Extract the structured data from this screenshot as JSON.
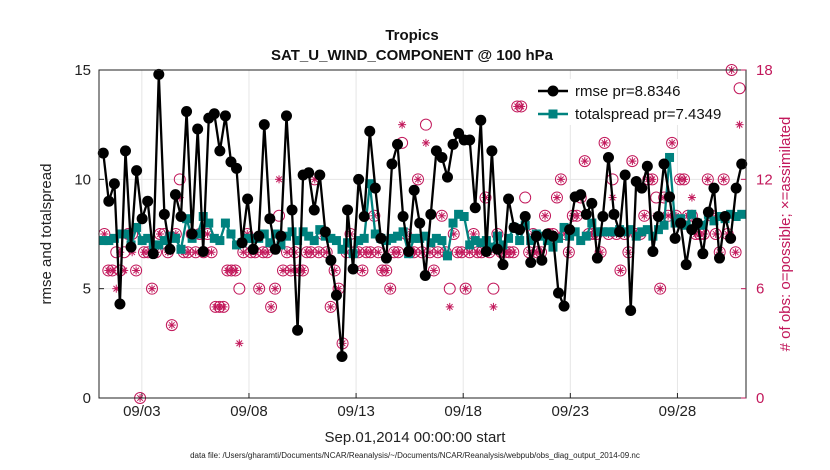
{
  "chart_data": {
    "type": "line",
    "title": "Tropics",
    "subtitle": "SAT_U_WIND_COMPONENT @ 100 hPa",
    "xlabel": "Sep.01,2014 00:00:00 start",
    "ylabel": "rmse and totalspread",
    "ylabel_right": "# of obs: o=possible; ×=assimilated",
    "ylim": [
      0,
      15
    ],
    "ylim_right": [
      0,
      18
    ],
    "xlim_days": [
      0,
      30.2
    ],
    "yticks": [
      "0",
      "5",
      "10",
      "15"
    ],
    "yticks_right": [
      "0",
      "6",
      "12",
      "18"
    ],
    "xticks": [
      {
        "day": 2.0,
        "label": "09/03"
      },
      {
        "day": 7.0,
        "label": "09/08"
      },
      {
        "day": 12.0,
        "label": "09/13"
      },
      {
        "day": 17.0,
        "label": "09/18"
      },
      {
        "day": 22.0,
        "label": "09/23"
      },
      {
        "day": 27.0,
        "label": "09/28"
      }
    ],
    "grid": true,
    "legend_position": "top-right",
    "footnote": "data file: /Users/gharamti/Documents/NCAR/Reanalysis/~/Documents/NCAR/Reanalysis/webpub/obs_diag_output_2014-09.nc",
    "colors": {
      "rmse": "#000000",
      "spread": "#00827f",
      "obs": "#c2185b"
    },
    "series": [
      {
        "name": "rmse pr=8.8346",
        "values": [
          11.2,
          9.0,
          9.8,
          4.3,
          11.3,
          6.9,
          10.4,
          8.2,
          9.0,
          6.6,
          14.8,
          8.4,
          6.8,
          9.3,
          8.3,
          13.1,
          7.5,
          12.3,
          6.7,
          12.8,
          13.0,
          11.3,
          12.9,
          10.8,
          10.5,
          7.1,
          9.1,
          6.8,
          7.4,
          12.5,
          8.2,
          6.8,
          7.4,
          12.9,
          8.6,
          3.1,
          10.2,
          10.3,
          8.6,
          10.2,
          7.6,
          6.3,
          4.7,
          1.9,
          8.6,
          5.9,
          10.0,
          8.3,
          12.2,
          9.6,
          7.3,
          6.4,
          10.7,
          11.6,
          8.3,
          6.7,
          9.5,
          8.0,
          5.6,
          8.4,
          11.3,
          11.0,
          10.1,
          11.6,
          12.1,
          11.8,
          11.8,
          8.7,
          12.7,
          6.7,
          11.3,
          6.8,
          6.1,
          9.1,
          7.8,
          7.7,
          8.3,
          6.2,
          7.4,
          6.3,
          7.5,
          7.4,
          4.8,
          4.2,
          7.7,
          9.2,
          9.3,
          8.4,
          8.9,
          6.4,
          8.3,
          11.0,
          8.4,
          7.6,
          10.2,
          4.0,
          9.9,
          9.6,
          10.6,
          6.7,
          8.3,
          10.7,
          9.2,
          7.3,
          8.0,
          6.1,
          7.7,
          8.0,
          6.6,
          8.5,
          9.6,
          6.4,
          8.3,
          7.3,
          9.6,
          10.7
        ]
      },
      {
        "name": "totalspread pr=7.4349",
        "values": [
          7.2,
          7.2,
          7.3,
          7.5,
          7.5,
          7.0,
          7.8,
          7.2,
          7.3,
          7.0,
          7.0,
          7.2,
          7.4,
          7.3,
          6.8,
          8.2,
          7.3,
          7.5,
          8.3,
          8.0,
          7.3,
          7.2,
          8.0,
          7.5,
          7.0,
          7.1,
          7.3,
          7.3,
          7.3,
          7.5,
          7.1,
          7.5,
          7.0,
          7.4,
          7.6,
          7.2,
          7.6,
          7.4,
          7.2,
          7.7,
          7.4,
          7.3,
          7.2,
          6.8,
          7.1,
          6.6,
          7.2,
          7.3,
          9.8,
          7.5,
          7.3,
          7.2,
          7.3,
          7.4,
          7.6,
          6.6,
          7.3,
          7.3,
          7.4,
          7.1,
          7.3,
          7.2,
          6.5,
          8.0,
          8.4,
          8.3,
          7.0,
          7.2,
          7.1,
          7.2,
          6.9,
          7.4,
          7.0,
          7.3,
          7.8,
          7.2,
          7.9,
          7.2,
          7.5,
          7.4,
          7.2,
          6.9,
          7.3,
          7.8,
          7.4,
          7.6,
          7.2,
          7.4,
          8.0,
          7.6,
          7.6,
          7.6,
          7.6,
          7.7,
          7.6,
          7.7,
          7.4,
          7.6,
          7.7,
          7.4,
          7.7,
          7.9,
          11.0,
          8.0,
          8.2,
          7.9,
          8.4,
          8.0,
          7.9,
          8.4,
          8.1,
          8.3,
          8.2,
          8.4,
          8.3,
          8.4
        ]
      }
    ],
    "obs_possible": [
      9,
      7,
      7,
      8,
      7,
      8,
      9,
      9,
      7,
      0,
      8,
      8,
      6,
      8,
      9,
      9,
      8,
      4,
      9,
      12,
      8,
      8,
      9,
      8,
      9,
      8,
      9,
      8,
      5,
      5,
      5,
      7,
      7,
      7,
      6,
      8,
      9,
      8,
      8,
      6,
      8,
      8,
      5,
      6,
      10,
      7,
      8,
      7,
      8,
      7,
      7,
      8,
      8,
      12,
      8,
      9,
      8,
      5,
      7,
      6,
      3,
      8,
      9,
      8,
      8,
      7,
      8,
      8,
      10,
      8,
      7,
      7,
      6,
      8,
      8,
      14,
      9,
      8,
      8,
      12,
      8,
      15,
      8,
      7,
      8,
      10,
      8,
      6,
      9,
      8,
      8,
      6,
      8,
      9,
      8,
      8,
      11,
      8,
      6,
      9,
      8,
      8,
      8,
      8,
      16,
      16,
      11,
      8,
      9,
      8,
      8,
      10,
      9,
      9,
      11,
      12,
      9,
      8,
      10,
      10,
      11,
      13,
      9,
      9,
      9,
      8,
      14,
      9,
      12,
      9,
      7,
      9,
      8,
      13,
      9,
      9,
      10,
      12,
      12,
      11,
      6,
      11,
      10,
      14,
      10,
      12,
      12,
      10,
      10,
      9,
      9,
      9,
      12,
      10,
      9,
      8,
      12,
      9,
      18,
      8,
      17
    ],
    "obs_assimilated": [
      9,
      7,
      7,
      6,
      8,
      7,
      9,
      8,
      7,
      0,
      8,
      8,
      6,
      8,
      9,
      10,
      8,
      4,
      9,
      11,
      8,
      8,
      9,
      8,
      9,
      8,
      9,
      8,
      5,
      5,
      5,
      7,
      7,
      7,
      3,
      8,
      9,
      8,
      8,
      6,
      8,
      8,
      5,
      6,
      12,
      7,
      8,
      7,
      8,
      7,
      7,
      8,
      8,
      12,
      8,
      9,
      8,
      5,
      7,
      6,
      3,
      8,
      9,
      8,
      8,
      7,
      8,
      8,
      10,
      8,
      7,
      7,
      6,
      8,
      8,
      15,
      9,
      8,
      8,
      12,
      8,
      14,
      8,
      7,
      8,
      10,
      8,
      5,
      9,
      8,
      8,
      6,
      8,
      9,
      8,
      8,
      11,
      8,
      5,
      9,
      8,
      8,
      8,
      8,
      16,
      16,
      10,
      8,
      9,
      8,
      8,
      10,
      9,
      9,
      11,
      12,
      9,
      8,
      10,
      10,
      11,
      13,
      9,
      9,
      9,
      8,
      14,
      9,
      11,
      9,
      7,
      9,
      8,
      13,
      9,
      9,
      10,
      12,
      12,
      10,
      6,
      11,
      10,
      14,
      10,
      12,
      12,
      10,
      11,
      9,
      9,
      9,
      12,
      10,
      9,
      8,
      12,
      9,
      18,
      8,
      15
    ]
  }
}
